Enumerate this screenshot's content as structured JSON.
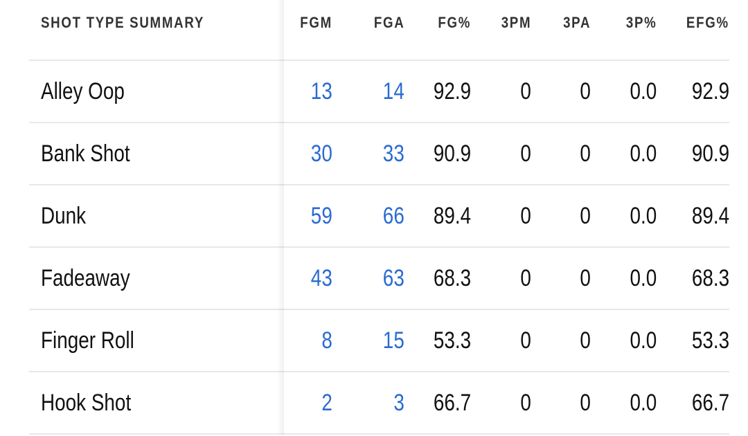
{
  "table": {
    "headers": [
      "SHOT TYPE SUMMARY",
      "FGM",
      "FGA",
      "FG%",
      "3PM",
      "3PA",
      "3P%",
      "EFG%"
    ],
    "rows": [
      [
        "Alley Oop",
        "13",
        "14",
        "92.9",
        "0",
        "0",
        "0.0",
        "92.9"
      ],
      [
        "Bank Shot",
        "30",
        "33",
        "90.9",
        "0",
        "0",
        "0.0",
        "90.9"
      ],
      [
        "Dunk",
        "59",
        "66",
        "89.4",
        "0",
        "0",
        "0.0",
        "89.4"
      ],
      [
        "Fadeaway",
        "43",
        "63",
        "68.3",
        "0",
        "0",
        "0.0",
        "68.3"
      ],
      [
        "Finger Roll",
        "8",
        "15",
        "53.3",
        "0",
        "0",
        "0.0",
        "53.3"
      ],
      [
        "Hook Shot",
        "2",
        "3",
        "66.7",
        "0",
        "0",
        "0.0",
        "66.7"
      ]
    ]
  },
  "colors": {
    "link": "#2a6bd1",
    "header": "#333333",
    "divider": "#e8e8e8"
  }
}
